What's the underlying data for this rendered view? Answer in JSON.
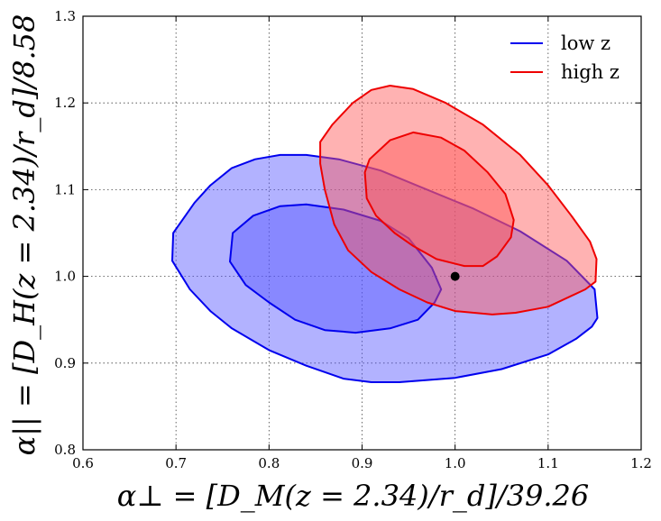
{
  "chart_data": {
    "type": "contour",
    "title": "",
    "xlabel": "α⊥ = [D_M(z = 2.34)/r_d]/39.26",
    "ylabel": "α|| = [D_H(z = 2.34)/r_d]/8.58",
    "xlim": [
      0.6,
      1.2
    ],
    "ylim": [
      0.8,
      1.3
    ],
    "x_ticks": [
      0.6,
      0.7,
      0.8,
      0.9,
      1.0,
      1.1,
      1.2
    ],
    "x_tick_labels": [
      "0.6",
      "0.7",
      "0.8",
      "0.9",
      "1.0",
      "1.1",
      "1.2"
    ],
    "y_ticks": [
      0.8,
      0.9,
      1.0,
      1.1,
      1.2,
      1.3
    ],
    "y_tick_labels": [
      "0.8",
      "0.9",
      "1.0",
      "1.1",
      "1.2",
      "1.3"
    ],
    "grid": true,
    "legend_position": "top-right",
    "series": [
      {
        "name": "low z",
        "color": "#0000ee",
        "fill_color": "#5555ff",
        "contours": [
          {
            "level": "outer",
            "points": [
              [
                0.696,
                1.018
              ],
              [
                0.697,
                1.05
              ],
              [
                0.72,
                1.085
              ],
              [
                0.737,
                1.105
              ],
              [
                0.76,
                1.125
              ],
              [
                0.785,
                1.135
              ],
              [
                0.812,
                1.14
              ],
              [
                0.84,
                1.14
              ],
              [
                0.875,
                1.135
              ],
              [
                0.92,
                1.122
              ],
              [
                0.97,
                1.1
              ],
              [
                1.02,
                1.078
              ],
              [
                1.07,
                1.052
              ],
              [
                1.12,
                1.018
              ],
              [
                1.15,
                0.985
              ],
              [
                1.153,
                0.952
              ],
              [
                1.147,
                0.942
              ],
              [
                1.13,
                0.928
              ],
              [
                1.1,
                0.91
              ],
              [
                1.05,
                0.893
              ],
              [
                1.0,
                0.883
              ],
              [
                0.94,
                0.878
              ],
              [
                0.91,
                0.878
              ],
              [
                0.88,
                0.882
              ],
              [
                0.84,
                0.897
              ],
              [
                0.8,
                0.915
              ],
              [
                0.76,
                0.94
              ],
              [
                0.737,
                0.96
              ],
              [
                0.715,
                0.985
              ]
            ]
          },
          {
            "level": "inner",
            "points": [
              [
                0.758,
                1.017
              ],
              [
                0.761,
                1.05
              ],
              [
                0.783,
                1.07
              ],
              [
                0.812,
                1.081
              ],
              [
                0.84,
                1.083
              ],
              [
                0.88,
                1.077
              ],
              [
                0.92,
                1.064
              ],
              [
                0.95,
                1.044
              ],
              [
                0.975,
                1.01
              ],
              [
                0.985,
                0.985
              ],
              [
                0.978,
                0.97
              ],
              [
                0.96,
                0.95
              ],
              [
                0.93,
                0.94
              ],
              [
                0.893,
                0.935
              ],
              [
                0.86,
                0.938
              ],
              [
                0.828,
                0.95
              ],
              [
                0.8,
                0.97
              ],
              [
                0.775,
                0.99
              ]
            ]
          }
        ]
      },
      {
        "name": "high z",
        "color": "#ee0000",
        "fill_color": "#ff5555",
        "contours": [
          {
            "level": "outer",
            "points": [
              [
                0.855,
                1.155
              ],
              [
                0.868,
                1.175
              ],
              [
                0.89,
                1.2
              ],
              [
                0.91,
                1.215
              ],
              [
                0.93,
                1.22
              ],
              [
                0.955,
                1.216
              ],
              [
                0.99,
                1.2
              ],
              [
                1.03,
                1.175
              ],
              [
                1.07,
                1.14
              ],
              [
                1.1,
                1.105
              ],
              [
                1.125,
                1.07
              ],
              [
                1.145,
                1.04
              ],
              [
                1.152,
                1.02
              ],
              [
                1.151,
                0.994
              ],
              [
                1.14,
                0.985
              ],
              [
                1.1,
                0.965
              ],
              [
                1.065,
                0.958
              ],
              [
                1.04,
                0.956
              ],
              [
                1.0,
                0.96
              ],
              [
                0.97,
                0.97
              ],
              [
                0.94,
                0.985
              ],
              [
                0.91,
                1.005
              ],
              [
                0.885,
                1.03
              ],
              [
                0.87,
                1.06
              ],
              [
                0.86,
                1.1
              ],
              [
                0.855,
                1.13
              ]
            ]
          },
          {
            "level": "inner",
            "points": [
              [
                0.903,
                1.12
              ],
              [
                0.908,
                1.135
              ],
              [
                0.93,
                1.157
              ],
              [
                0.955,
                1.166
              ],
              [
                0.985,
                1.16
              ],
              [
                1.01,
                1.145
              ],
              [
                1.035,
                1.12
              ],
              [
                1.054,
                1.095
              ],
              [
                1.063,
                1.065
              ],
              [
                1.06,
                1.045
              ],
              [
                1.045,
                1.023
              ],
              [
                1.03,
                1.012
              ],
              [
                1.01,
                1.012
              ],
              [
                0.98,
                1.02
              ],
              [
                0.955,
                1.035
              ],
              [
                0.935,
                1.05
              ],
              [
                0.915,
                1.07
              ],
              [
                0.905,
                1.09
              ]
            ]
          }
        ]
      }
    ],
    "points": [
      {
        "name": "fiducial",
        "x": 1.0,
        "y": 1.0,
        "color": "#000000"
      }
    ]
  }
}
